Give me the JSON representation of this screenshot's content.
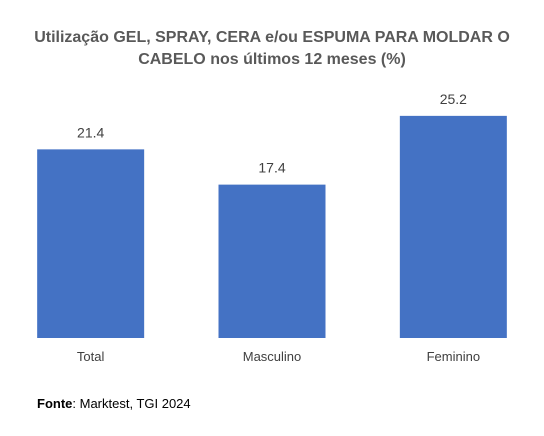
{
  "chart_data": {
    "type": "bar",
    "title_line1": "Utilização GEL, SPRAY, CERA e/ou ESPUMA PARA MOLDAR O",
    "title_line2": "CABELO nos últimos 12 meses (%)",
    "categories": [
      "Total",
      "Masculino",
      "Feminino"
    ],
    "values": [
      21.4,
      17.4,
      25.2
    ],
    "value_labels": [
      "21.4",
      "17.4",
      "25.2"
    ],
    "ylim": [
      0,
      27
    ],
    "bar_color": "#4472C4",
    "grid": false,
    "legend": "none"
  },
  "source": {
    "label": "Fonte",
    "text": ": Marktest, TGI 2024"
  }
}
